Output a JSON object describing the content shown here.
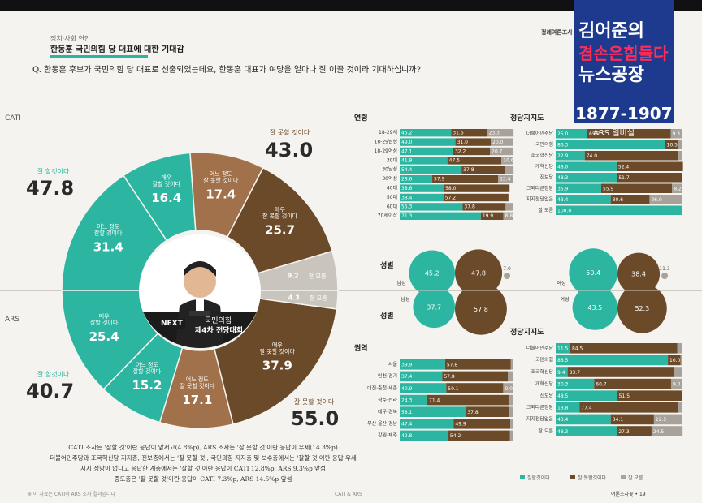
{
  "header": {
    "category": "정치·사회 현안",
    "title": "한동훈 국민의힘 당 대표에 대한 기대감",
    "question": "Q. 한동훈 후보가 국민의힘 당 대표로 선출되었는데요, 한동훈 대표가 여당을 얼마나 잘 이끌 것이라 기대하십니까?",
    "publisher": "정례여론조사"
  },
  "overlay": {
    "line1": "김어준의",
    "line2": "겸손은힘들다",
    "line3": "뉴스공장",
    "time": "1877-1907",
    "live": "ARS 일비실"
  },
  "colors": {
    "teal": "#2cb5a0",
    "brown": "#6b4a2a",
    "light_brown": "#a0714a",
    "gray": "#9a9a9a"
  },
  "sides": {
    "cati": "CATI",
    "ars": "ARS"
  },
  "donut": {
    "cati": {
      "good_total_label": "잘 할것이다",
      "good_total": "47.8",
      "bad_total_label": "잘 못할 것이다",
      "bad_total": "43.0",
      "segments": [
        {
          "label": "어느 정도\n잘할 것이다",
          "value": 31.4,
          "color": "#2cb5a0"
        },
        {
          "label": "매우\n잘할 것이다",
          "value": 16.4,
          "color": "#2cb5a0"
        },
        {
          "label": "어느 정도\n잘 못할 것이다",
          "value": 17.4,
          "color": "#a0714a"
        },
        {
          "label": "매우\n잘 못할 것이다",
          "value": 25.7,
          "color": "#6b4a2a"
        },
        {
          "label": "잘 모름",
          "value": 9.2,
          "color": "#c9c4bc"
        }
      ]
    },
    "ars": {
      "good_total_label": "잘 할것이다",
      "good_total": "40.7",
      "bad_total_label": "잘 못할 것이다",
      "bad_total": "55.0",
      "segments": [
        {
          "label": "매우\n잘할 것이다",
          "value": 25.4,
          "color": "#2cb5a0"
        },
        {
          "label": "어느 정도\n잘할 것이다",
          "value": 15.2,
          "color": "#2cb5a0"
        },
        {
          "label": "어느 정도\n잘 못할 것이다",
          "value": 17.1,
          "color": "#a0714a"
        },
        {
          "label": "매우\n잘 못할 것이다",
          "value": 37.9,
          "color": "#6b4a2a"
        },
        {
          "label": "잘 모름",
          "value": 4.3,
          "color": "#c9c4bc"
        }
      ]
    },
    "center": {
      "badge": "NEXT",
      "line1": "국민의힘",
      "line2": "제4차 전당대회"
    }
  },
  "caption": [
    "CATI 조사는 '잘할 것'이란 응답이 앞서고(4.8%p), ARS 조사는 '잘 못할 것'이란 응답이 우세(14.3%p)",
    "더불어민주당과 조국혁신당 지지층, 진보층에서는 '잘 못할 것', 국민의힘 지지층 및 보수층에서는 '잘할 것'이란 응답 우세",
    "지지 정당이 없다고 응답한 계층에서는 '잘할 것'이란 응답이 CATI 12.8%p, ARS 9.3%p 앞섬",
    "중도층은 '잘 못할 것'이란 응답이 CATI 7.3%p, ARS 14.5%p 앞섬"
  ],
  "chart_data": [
    {
      "type": "bar",
      "title": "연령",
      "categories": [
        "18-29세",
        "18-29남성",
        "18-29여성",
        "30대",
        "30남성",
        "30여성",
        "40대",
        "50대",
        "60대",
        "70세이상"
      ],
      "series": [
        {
          "name": "잘할것이다",
          "values": [
            45.2,
            49.0,
            47.1,
            41.9,
            54.4,
            28.6,
            38.6,
            38.4,
            55.3,
            71.3
          ]
        },
        {
          "name": "잘 못할것이다",
          "values": [
            31.6,
            31.0,
            32.2,
            47.5,
            37.8,
            57.9,
            58.0,
            57.2,
            37.8,
            19.9
          ]
        },
        {
          "name": "잘 모름",
          "values": [
            23.3,
            20.0,
            20.7,
            10.6,
            7.9,
            13.4,
            0,
            0,
            6.9,
            8.8
          ]
        }
      ]
    },
    {
      "type": "bar",
      "title": "정당지지도",
      "categories": [
        "더불어민주당",
        "국민의힘",
        "조국혁신당",
        "개혁신당",
        "진보당",
        "그외다른정당",
        "지지정당없음",
        "잘 모름"
      ],
      "series": [
        {
          "name": "잘할것이다",
          "values": [
            25.0,
            86.3,
            22.9,
            48.0,
            48.3,
            35.9,
            43.4,
            100.0
          ]
        },
        {
          "name": "잘 못할것이다",
          "values": [
            65.7,
            10.5,
            74.0,
            52.4,
            51.7,
            55.9,
            30.6,
            0
          ]
        },
        {
          "name": "잘 모름",
          "values": [
            9.3,
            3.2,
            3.1,
            0,
            0,
            8.2,
            26.0,
            0
          ]
        }
      ]
    },
    {
      "type": "bar",
      "title": "성별",
      "categories": [
        "남성 CATI",
        "여성 CATI",
        "남성 ARS",
        "여성 ARS"
      ],
      "series": [
        {
          "name": "잘할것이다",
          "values": [
            45.2,
            50.4,
            37.7,
            43.5
          ]
        },
        {
          "name": "잘 못할것이다",
          "values": [
            47.8,
            38.4,
            57.8,
            52.3
          ]
        },
        {
          "name": "잘 모름",
          "values": [
            7.0,
            11.3,
            0,
            0
          ]
        }
      ]
    },
    {
      "type": "bar",
      "title": "권역",
      "categories": [
        "서울",
        "인천·경기",
        "대전·충청·세종",
        "광주·전라",
        "대구·경북",
        "부산·울산·경남",
        "강원·제주"
      ],
      "series": [
        {
          "name": "잘할것이다",
          "values": [
            39.9,
            37.4,
            40.9,
            24.3,
            58.1,
            47.4,
            42.8
          ]
        },
        {
          "name": "잘 못할것이다",
          "values": [
            57.8,
            57.8,
            50.1,
            71.4,
            37.8,
            49.9,
            54.2
          ]
        },
        {
          "name": "잘 모름",
          "values": [
            2.3,
            4.8,
            9.0,
            4.3,
            4.1,
            2.7,
            3.0
          ]
        }
      ]
    },
    {
      "type": "bar",
      "title": "정당지지도",
      "categories": [
        "더불어민주당",
        "국민의힘",
        "조국혁신당",
        "개혁신당",
        "진보당",
        "그외다른정당",
        "지지정당없음",
        "잘 모름"
      ],
      "series": [
        {
          "name": "잘할것이다",
          "values": [
            11.5,
            88.5,
            9.4,
            30.3,
            48.5,
            18.8,
            43.4,
            48.3
          ]
        },
        {
          "name": "잘 못할것이다",
          "values": [
            84.5,
            10.0,
            83.7,
            60.7,
            51.5,
            77.4,
            34.1,
            27.3
          ]
        },
        {
          "name": "잘 모름",
          "values": [
            4.0,
            1.5,
            6.9,
            9.0,
            0,
            3.8,
            22.5,
            24.5
          ]
        }
      ]
    }
  ],
  "legend": [
    "잘할것이다",
    "잘 못할것이다",
    "잘 모름"
  ],
  "footer": {
    "left": "※ 이 자료는 CATI와 ARS 조사 결과입니다",
    "center": "CATI & ARS",
    "right": "여론조사꽃 • 19"
  }
}
